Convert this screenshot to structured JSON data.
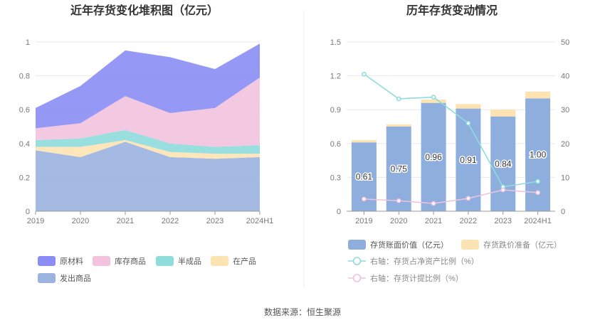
{
  "footer": {
    "source": "数据来源：恒生聚源"
  },
  "colors": {
    "raw_material": "#8b8df5",
    "inventory_goods": "#f2c2de",
    "semi_finished": "#8fdcdd",
    "wip": "#fde3b1",
    "shipped_goods": "#9ab3e0",
    "bar_book_value": "#8eaedd",
    "bar_impairment": "#fde3b1",
    "line_ratio": "#8fdcdd",
    "line_provision": "#eec3dd"
  },
  "chart_data": [
    {
      "type": "area",
      "title": "近年存货变化堆积图（亿元）",
      "x": [
        "2019",
        "2020",
        "2021",
        "2022",
        "2023",
        "2024H1"
      ],
      "ylim": [
        0,
        1
      ],
      "yticks": [
        "0",
        "0.2",
        "0.4",
        "0.6",
        "0.8",
        "1"
      ],
      "grid": true,
      "legend_position": "bottom",
      "series": [
        {
          "name": "发出商品",
          "color_key": "shipped_goods",
          "values": [
            0.36,
            0.32,
            0.41,
            0.32,
            0.31,
            0.32
          ]
        },
        {
          "name": "在产品",
          "color_key": "wip",
          "values": [
            0.02,
            0.06,
            0.01,
            0.03,
            0.03,
            0.02
          ]
        },
        {
          "name": "半成品",
          "color_key": "semi_finished",
          "values": [
            0.04,
            0.05,
            0.06,
            0.05,
            0.04,
            0.05
          ]
        },
        {
          "name": "库存商品",
          "color_key": "inventory_goods",
          "values": [
            0.07,
            0.09,
            0.2,
            0.18,
            0.23,
            0.4
          ]
        },
        {
          "name": "原材料",
          "color_key": "raw_material",
          "values": [
            0.12,
            0.22,
            0.27,
            0.33,
            0.23,
            0.2
          ]
        }
      ],
      "legend_order": [
        "原材料",
        "库存商品",
        "半成品",
        "在产品",
        "发出商品"
      ]
    },
    {
      "type": "bar",
      "title": "历年存货变动情况",
      "categories": [
        "2019",
        "2020",
        "2021",
        "2022",
        "2023",
        "2024H1"
      ],
      "ylim": [
        0,
        1.5
      ],
      "yticks": [
        "0",
        "0.3",
        "0.6",
        "0.9",
        "1.2",
        "1.5"
      ],
      "y2lim": [
        0,
        50
      ],
      "y2ticks": [
        "0",
        "10",
        "20",
        "30",
        "40",
        "50"
      ],
      "grid": true,
      "legend_position": "bottom",
      "bar_series": [
        {
          "name": "存货账面价值（亿元）",
          "color_key": "bar_book_value",
          "values": [
            0.61,
            0.75,
            0.96,
            0.91,
            0.84,
            1.0
          ],
          "labels": [
            "0.61",
            "0.75",
            "0.96",
            "0.91",
            "0.84",
            "1.00"
          ]
        },
        {
          "name": "存货跌价准备（亿元）",
          "color_key": "bar_impairment",
          "values": [
            0.02,
            0.02,
            0.03,
            0.04,
            0.06,
            0.06
          ]
        }
      ],
      "line_series": [
        {
          "name": "右轴：存货占净资产比例（%）",
          "color_key": "line_ratio",
          "axis": "right",
          "values": [
            40.5,
            33.2,
            33.7,
            26.0,
            7.2,
            8.8
          ]
        },
        {
          "name": "右轴：存货计提比例（%）",
          "color_key": "line_provision",
          "axis": "right",
          "values": [
            3.6,
            3.1,
            2.3,
            3.8,
            6.3,
            5.5
          ]
        }
      ]
    }
  ]
}
